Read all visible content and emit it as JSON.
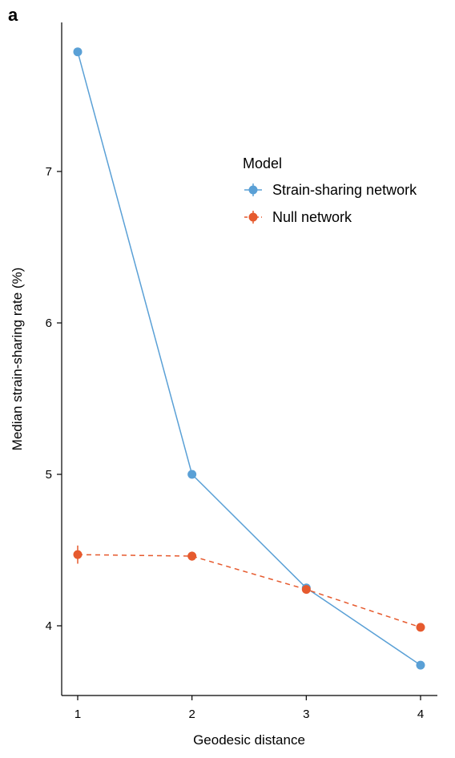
{
  "panel_label": "a",
  "chart_data": {
    "type": "line",
    "xlabel": "Geodesic distance",
    "ylabel": "Median strain-sharing rate (%)",
    "x": [
      1,
      2,
      3,
      4
    ],
    "x_ticks": [
      "1",
      "2",
      "3",
      "4"
    ],
    "y_ticks": [
      "4",
      "5",
      "6",
      "7"
    ],
    "y_tick_values": [
      4,
      5,
      6,
      7
    ],
    "xlim": [
      0.85,
      4.15
    ],
    "ylim": [
      3.53,
      7.99
    ],
    "legend": {
      "title": "Model",
      "placement": "top-right"
    },
    "series": [
      {
        "name": "Strain-sharing network",
        "color": "#5aa0d6",
        "line_style": "solid",
        "values": [
          7.79,
          5.0,
          4.25,
          3.74
        ],
        "error": [
          0.0,
          0.0,
          0.0,
          0.0
        ]
      },
      {
        "name": "Null network",
        "color": "#e65a2e",
        "line_style": "dashed",
        "values": [
          4.47,
          4.46,
          4.24,
          3.99
        ],
        "error": [
          0.06,
          0.03,
          0.015,
          0.015
        ]
      }
    ]
  }
}
